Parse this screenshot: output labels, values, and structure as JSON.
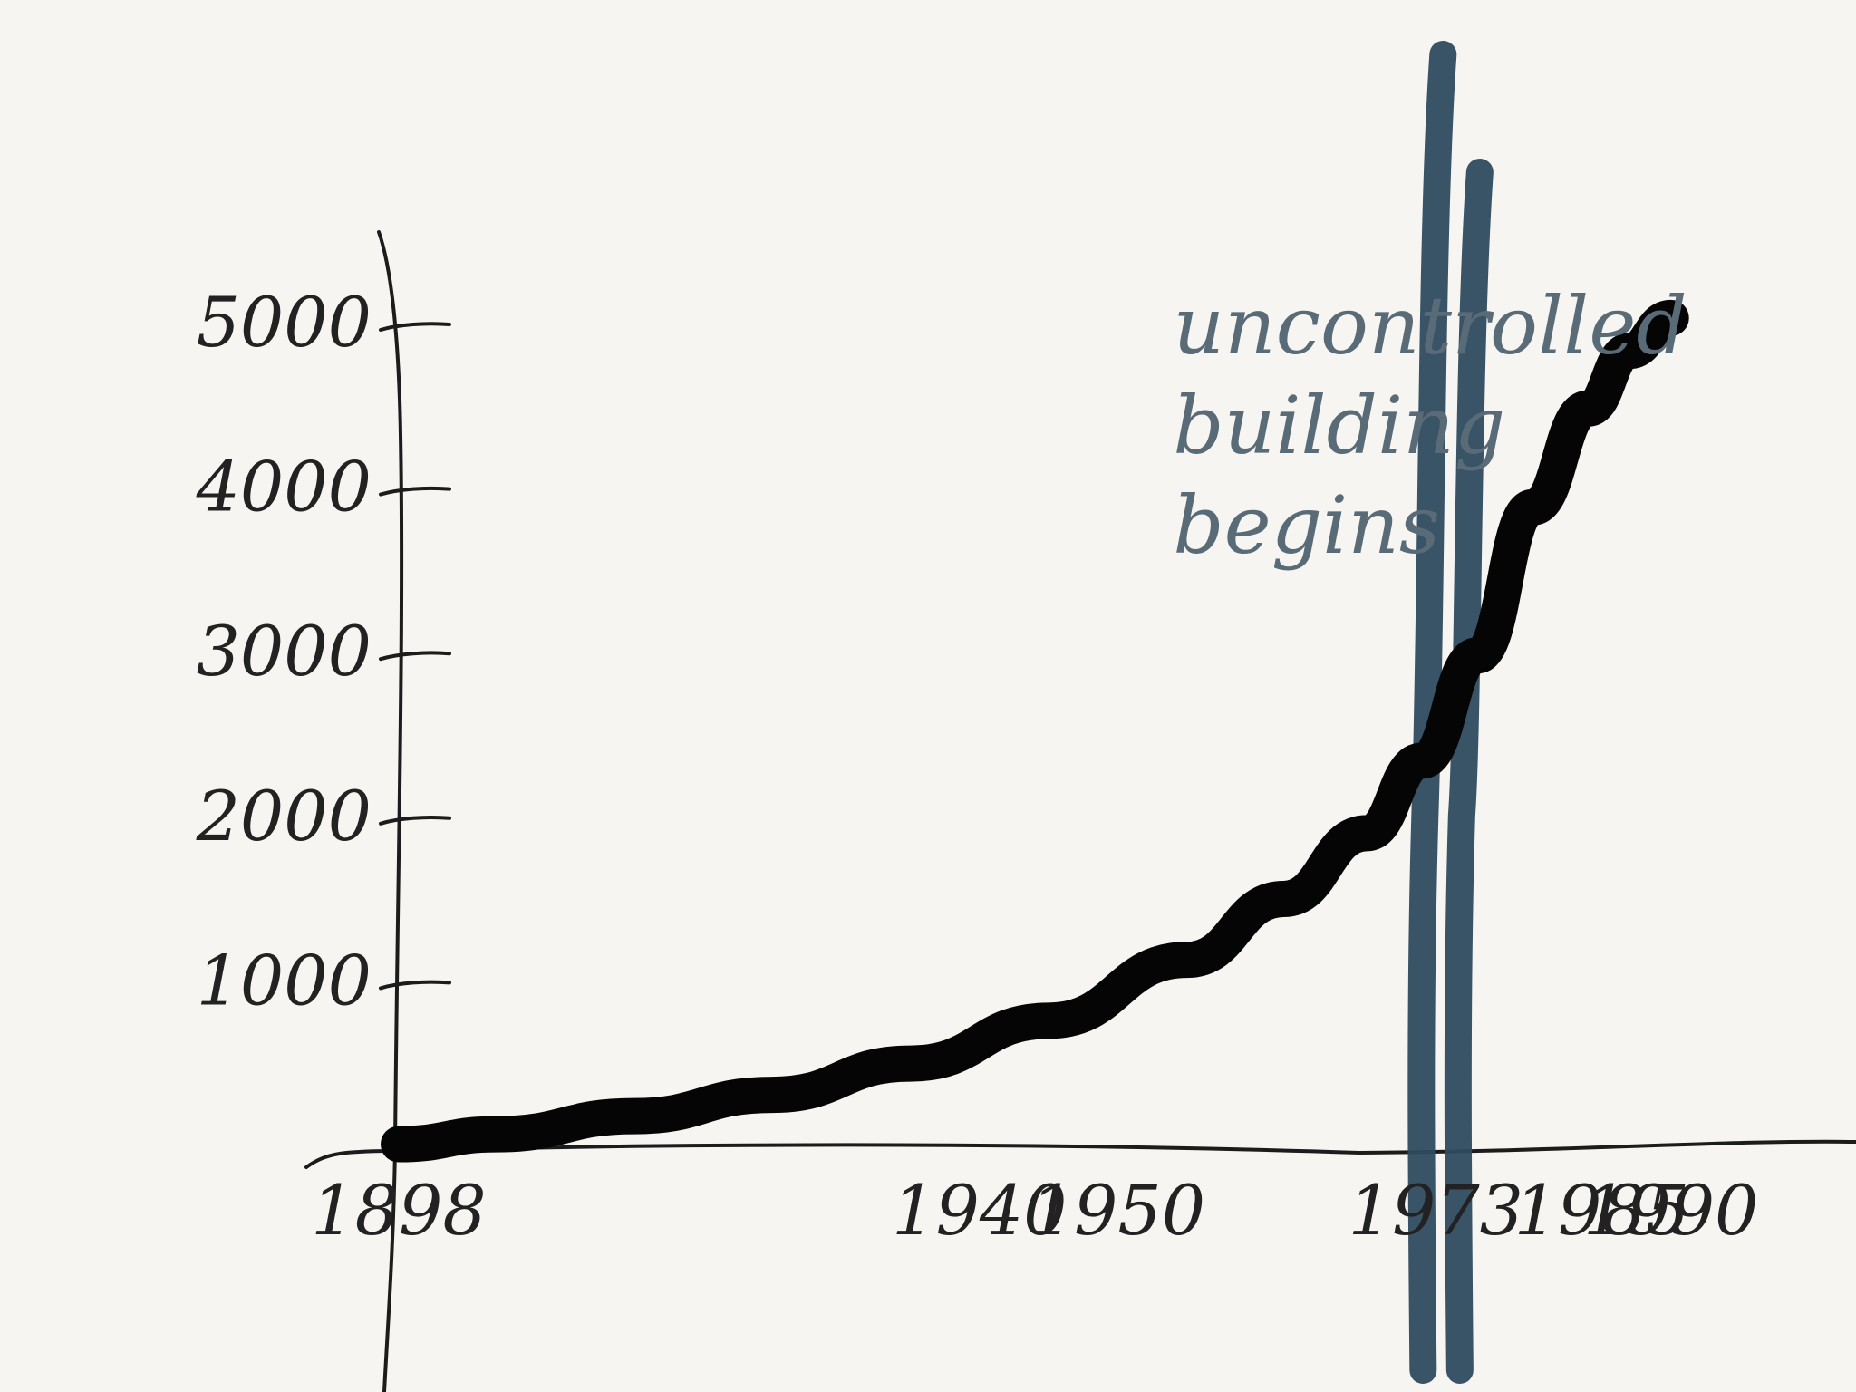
{
  "chart_data": {
    "type": "line",
    "title": "",
    "xlabel": "",
    "ylabel": "",
    "x_ticks": [
      1898,
      1940,
      1950,
      1973,
      1985,
      1990
    ],
    "y_ticks": [
      1000,
      2000,
      3000,
      4000,
      5000
    ],
    "y_tick_labels": [
      "1000",
      "2000",
      "3000",
      "4000",
      "5000"
    ],
    "x_range": [
      1898,
      1995
    ],
    "y_range": [
      0,
      5000
    ],
    "series": [
      {
        "x": [
          1898,
          1905,
          1915,
          1925,
          1935,
          1945,
          1955,
          1962,
          1968,
          1972,
          1976,
          1980,
          1984,
          1987,
          1990
        ],
        "y": [
          30,
          90,
          200,
          330,
          520,
          780,
          1150,
          1520,
          1920,
          2360,
          3000,
          3900,
          4500,
          4850,
          5050
        ]
      }
    ],
    "annotation": {
      "text": [
        "uncontrolled",
        "building",
        "begins"
      ],
      "x": 1973
    },
    "vertical_marker_x": [
      1973,
      1975
    ],
    "colors": {
      "axis": "#1c1c1c",
      "curve": "#050505",
      "marker": "#2e4a5f",
      "annotation": "#5a6b78"
    }
  }
}
